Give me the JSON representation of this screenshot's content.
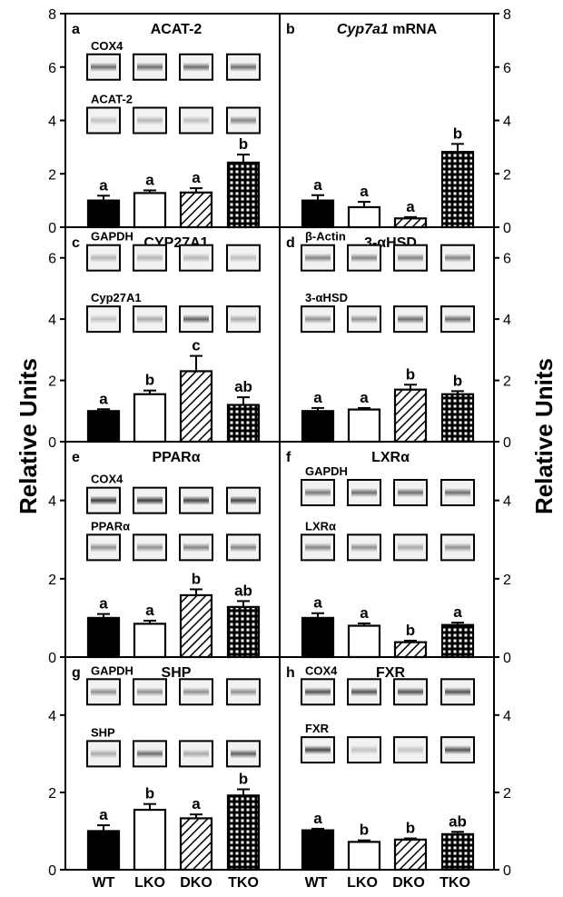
{
  "y_axis_label": "Relative Units",
  "categories": [
    "WT",
    "LKO",
    "DKO",
    "TKO"
  ],
  "colors": {
    "ink": "#000000",
    "paper": "#ffffff",
    "blot_bg": "#f2f2f2"
  },
  "bar_styles": [
    "solid",
    "open",
    "hatched",
    "crosshatched"
  ],
  "chart_data": [
    {
      "panel": "a",
      "title": "ACAT-2",
      "type": "bar",
      "categories": [
        "WT",
        "LKO",
        "DKO",
        "TKO"
      ],
      "ylim": [
        0,
        8
      ],
      "yticks": [
        0,
        2,
        4,
        6,
        8
      ],
      "tick_side": "left",
      "values": [
        1.0,
        1.28,
        1.3,
        2.42
      ],
      "errors": [
        0.18,
        0.1,
        0.16,
        0.3
      ],
      "letters": [
        "a",
        "a",
        "a",
        "b"
      ],
      "blots": [
        {
          "label": "COX4",
          "level": 6.0,
          "intensity": [
            0.55,
            0.55,
            0.55,
            0.55
          ]
        },
        {
          "label": "ACAT-2",
          "level": 4.0,
          "intensity": [
            0.2,
            0.25,
            0.22,
            0.45
          ]
        }
      ]
    },
    {
      "panel": "b",
      "title": "Cyp7a1",
      "title_suffix": " mRNA",
      "type": "bar",
      "categories": [
        "WT",
        "LKO",
        "DKO",
        "TKO"
      ],
      "ylim": [
        0,
        8
      ],
      "yticks": [
        0,
        2,
        4,
        6,
        8
      ],
      "tick_side": "right",
      "values": [
        1.0,
        0.75,
        0.33,
        2.82
      ],
      "errors": [
        0.2,
        0.2,
        0.05,
        0.3
      ],
      "letters": [
        "a",
        "a",
        "a",
        "b"
      ],
      "blots": []
    },
    {
      "panel": "c",
      "title": "CYP27A1",
      "type": "bar",
      "categories": [
        "WT",
        "LKO",
        "DKO",
        "TKO"
      ],
      "ylim": [
        0,
        7
      ],
      "yticks": [
        0,
        2,
        4,
        6
      ],
      "tick_side": "left",
      "values": [
        1.0,
        1.55,
        2.3,
        1.2
      ],
      "errors": [
        0.06,
        0.12,
        0.5,
        0.25
      ],
      "letters": [
        "a",
        "b",
        "c",
        "ab"
      ],
      "blots": [
        {
          "label": "GAPDH",
          "level": 6.0,
          "intensity": [
            0.25,
            0.25,
            0.25,
            0.22
          ]
        },
        {
          "label": "Cyp27A1",
          "level": 4.0,
          "intensity": [
            0.2,
            0.3,
            0.6,
            0.3
          ]
        }
      ]
    },
    {
      "panel": "d",
      "title": "3-αHSD",
      "type": "bar",
      "categories": [
        "WT",
        "LKO",
        "DKO",
        "TKO"
      ],
      "ylim": [
        0,
        7
      ],
      "yticks": [
        0,
        2,
        4,
        6
      ],
      "tick_side": "right",
      "values": [
        1.0,
        1.05,
        1.7,
        1.55
      ],
      "errors": [
        0.1,
        0.05,
        0.16,
        0.1
      ],
      "letters": [
        "a",
        "a",
        "b",
        "b"
      ],
      "blots": [
        {
          "label": "β-Actin",
          "level": 6.0,
          "intensity": [
            0.45,
            0.45,
            0.45,
            0.45
          ]
        },
        {
          "label": "3-αHSD",
          "level": 4.0,
          "intensity": [
            0.4,
            0.4,
            0.55,
            0.55
          ]
        }
      ]
    },
    {
      "panel": "e",
      "title": "PPARα",
      "type": "bar",
      "categories": [
        "WT",
        "LKO",
        "DKO",
        "TKO"
      ],
      "ylim": [
        0,
        5.5
      ],
      "yticks": [
        0,
        2,
        4
      ],
      "tick_side": "left",
      "values": [
        1.0,
        0.85,
        1.58,
        1.28
      ],
      "errors": [
        0.1,
        0.08,
        0.15,
        0.15
      ],
      "letters": [
        "a",
        "a",
        "b",
        "ab"
      ],
      "blots": [
        {
          "label": "COX4",
          "level": 4.0,
          "intensity": [
            0.75,
            0.75,
            0.72,
            0.72
          ]
        },
        {
          "label": "PPARα",
          "level": 2.8,
          "intensity": [
            0.4,
            0.4,
            0.45,
            0.45
          ]
        }
      ]
    },
    {
      "panel": "f",
      "title": "LXRα",
      "type": "bar",
      "categories": [
        "WT",
        "LKO",
        "DKO",
        "TKO"
      ],
      "ylim": [
        0,
        5.5
      ],
      "yticks": [
        0,
        2,
        4
      ],
      "tick_side": "right",
      "values": [
        1.0,
        0.8,
        0.38,
        0.82
      ],
      "errors": [
        0.12,
        0.06,
        0.04,
        0.06
      ],
      "letters": [
        "a",
        "a",
        "b",
        "a"
      ],
      "blots": [
        {
          "label": "GAPDH",
          "level": 4.2,
          "intensity": [
            0.5,
            0.55,
            0.55,
            0.55
          ]
        },
        {
          "label": "LXRα",
          "level": 2.8,
          "intensity": [
            0.45,
            0.4,
            0.3,
            0.4
          ]
        }
      ]
    },
    {
      "panel": "g",
      "title": "SHP",
      "type": "bar",
      "categories": [
        "WT",
        "LKO",
        "DKO",
        "TKO"
      ],
      "ylim": [
        0,
        5.5
      ],
      "yticks": [
        0,
        2,
        4
      ],
      "tick_side": "left",
      "values": [
        1.0,
        1.55,
        1.33,
        1.92
      ],
      "errors": [
        0.15,
        0.15,
        0.1,
        0.16
      ],
      "letters": [
        "a",
        "b",
        "a",
        "b"
      ],
      "blots": [
        {
          "label": "GAPDH",
          "level": 4.6,
          "intensity": [
            0.4,
            0.4,
            0.4,
            0.4
          ]
        },
        {
          "label": "SHP",
          "level": 3.0,
          "intensity": [
            0.3,
            0.55,
            0.3,
            0.6
          ]
        }
      ]
    },
    {
      "panel": "h",
      "title": "FXR",
      "type": "bar",
      "categories": [
        "WT",
        "LKO",
        "DKO",
        "TKO"
      ],
      "ylim": [
        0,
        5.5
      ],
      "yticks": [
        0,
        2,
        4
      ],
      "tick_side": "right",
      "values": [
        1.02,
        0.72,
        0.78,
        0.92
      ],
      "errors": [
        0.04,
        0.04,
        0.03,
        0.06
      ],
      "letters": [
        "a",
        "b",
        "b",
        "ab"
      ],
      "blots": [
        {
          "label": "COX4",
          "level": 4.6,
          "intensity": [
            0.65,
            0.65,
            0.65,
            0.65
          ]
        },
        {
          "label": "FXR",
          "level": 3.1,
          "intensity": [
            0.7,
            0.2,
            0.2,
            0.65
          ]
        }
      ]
    }
  ]
}
